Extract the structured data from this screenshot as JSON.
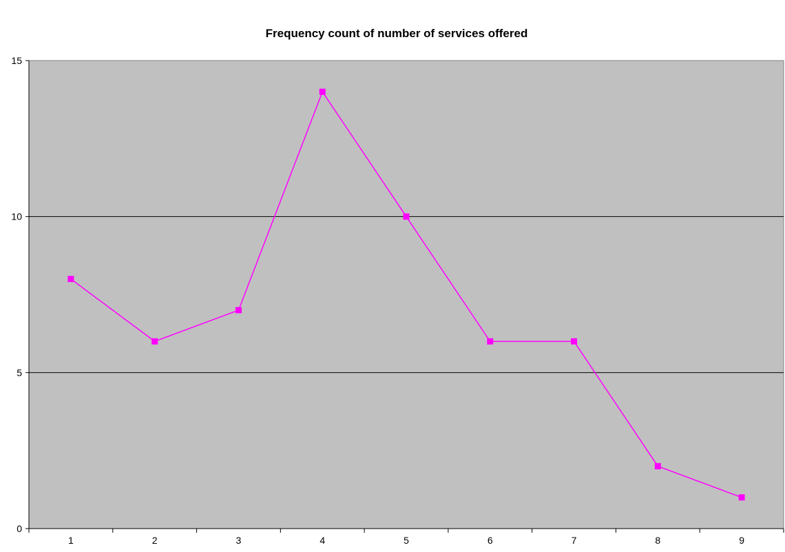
{
  "chart_data": {
    "type": "line",
    "title": "Frequency count of number of services offered",
    "xlabel": "",
    "ylabel": "",
    "categories": [
      "1",
      "2",
      "3",
      "4",
      "5",
      "6",
      "7",
      "8",
      "9"
    ],
    "series": [
      {
        "values": [
          8,
          6,
          7,
          14,
          10,
          6,
          6,
          2,
          1
        ],
        "color": "#ff00ff",
        "marker": "square"
      }
    ],
    "ylim": [
      0,
      15
    ],
    "yticks": [
      "0",
      "5",
      "10",
      "15"
    ],
    "grid": "horizontal",
    "legend": "none",
    "plot_background": "#c0c0c0"
  }
}
